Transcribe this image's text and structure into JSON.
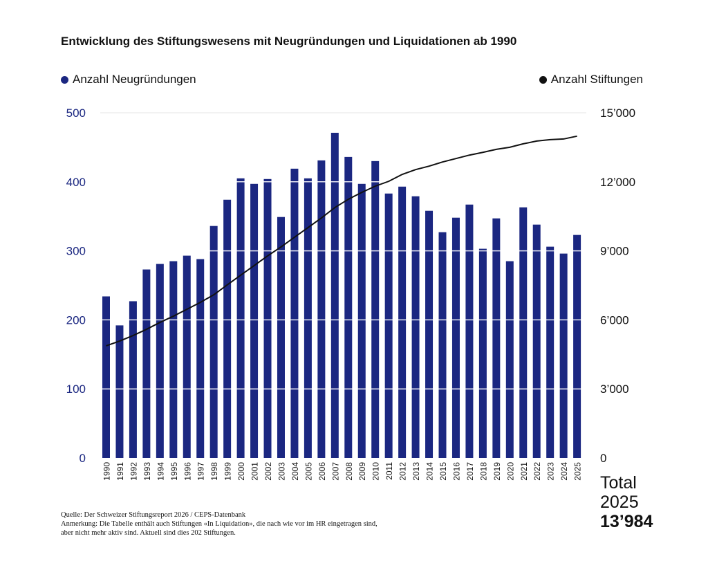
{
  "chart_data": {
    "type": "bar",
    "title": "Entwicklung des Stiftungswesens mit Neugründungen und Liquidationen ab 1990",
    "categories": [
      "1990",
      "1991",
      "1992",
      "1993",
      "1994",
      "1995",
      "1996",
      "1997",
      "1998",
      "1999",
      "2000",
      "2001",
      "2002",
      "2003",
      "2004",
      "2005",
      "2006",
      "2007",
      "2008",
      "2009",
      "2010",
      "2011",
      "2012",
      "2013",
      "2014",
      "2015",
      "2016",
      "2017",
      "2018",
      "2019",
      "2020",
      "2021",
      "2022",
      "2023",
      "2024",
      "2025"
    ],
    "series": [
      {
        "name": "Anzahl Neugründungen",
        "type": "bar",
        "axis": "left",
        "color": "#1b2781",
        "values": [
          234,
          192,
          227,
          273,
          281,
          285,
          293,
          288,
          336,
          374,
          405,
          397,
          404,
          349,
          419,
          405,
          431,
          471,
          436,
          397,
          430,
          383,
          393,
          379,
          358,
          327,
          348,
          367,
          303,
          347,
          285,
          363,
          338,
          306,
          296,
          323
        ]
      },
      {
        "name": "Anzahl Stiftungen",
        "type": "line",
        "axis": "right",
        "color": "#111111",
        "values": [
          4870,
          5080,
          5320,
          5590,
          5890,
          6160,
          6460,
          6760,
          7090,
          7520,
          7940,
          8360,
          8780,
          9170,
          9590,
          10010,
          10430,
          10880,
          11240,
          11540,
          11810,
          12020,
          12320,
          12530,
          12680,
          12860,
          13010,
          13160,
          13280,
          13410,
          13500,
          13650,
          13770,
          13830,
          13860,
          13984
        ]
      }
    ],
    "ylim_left": [
      0,
      500
    ],
    "ylim_right": [
      0,
      15000
    ],
    "left_ticks": [
      "0",
      "100",
      "200",
      "300",
      "400",
      "500"
    ],
    "right_ticks": [
      "0",
      "3’000",
      "6’000",
      "9’000",
      "12’000",
      "15’000"
    ],
    "legend": [
      "Anzahl Neugründungen",
      "Anzahl Stiftungen"
    ],
    "grid": true
  },
  "total": {
    "label": "Total",
    "year": "2025",
    "value": "13’984"
  },
  "footnote": {
    "source": "Quelle: Der Schweizer Stiftungsreport 2026 / CEPS-Datenbank",
    "note1": "Anmerkung: Die Tabelle enthält  auch Stiftungen «In Liquidation», die nach wie vor im HR eingetragen sind,",
    "note2": "aber nicht mehr aktiv sind. Aktuell sind dies 202 Stiftungen."
  }
}
